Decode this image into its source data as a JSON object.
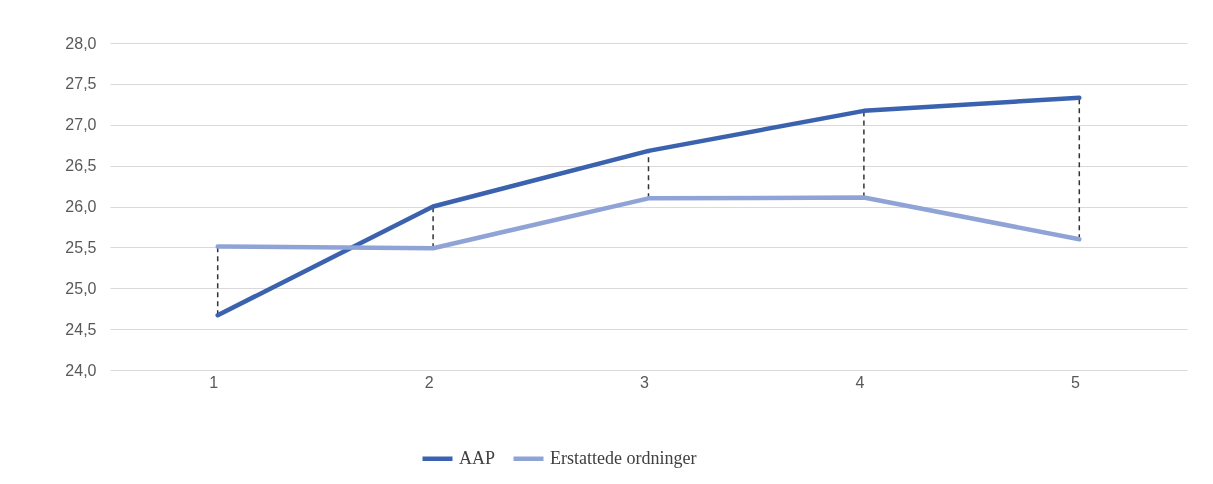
{
  "chart_data": {
    "type": "line",
    "categories": [
      "1",
      "2",
      "3",
      "4",
      "5"
    ],
    "series": [
      {
        "name": "AAP",
        "color": "#3a62ae",
        "values": [
          24.67,
          26.0,
          26.68,
          27.17,
          27.33
        ]
      },
      {
        "name": "Erstattede ordninger",
        "color": "#8fa3d6",
        "values": [
          25.51,
          25.49,
          26.1,
          26.11,
          25.6
        ]
      }
    ],
    "ylim": [
      24,
      28
    ],
    "yticks": [
      {
        "value": 24,
        "label": "24,0"
      },
      {
        "value": 24.5,
        "label": "24,5"
      },
      {
        "value": 25,
        "label": "25,0"
      },
      {
        "value": 25.5,
        "label": "25,5"
      },
      {
        "value": 26,
        "label": "26,0"
      },
      {
        "value": 26.5,
        "label": "26,5"
      },
      {
        "value": 27,
        "label": "27,0"
      },
      {
        "value": 27.5,
        "label": "27,5"
      },
      {
        "value": 28,
        "label": "28,0"
      }
    ],
    "grid": "y",
    "legend": "bottom",
    "marker": "none",
    "line_style": "solid"
  }
}
